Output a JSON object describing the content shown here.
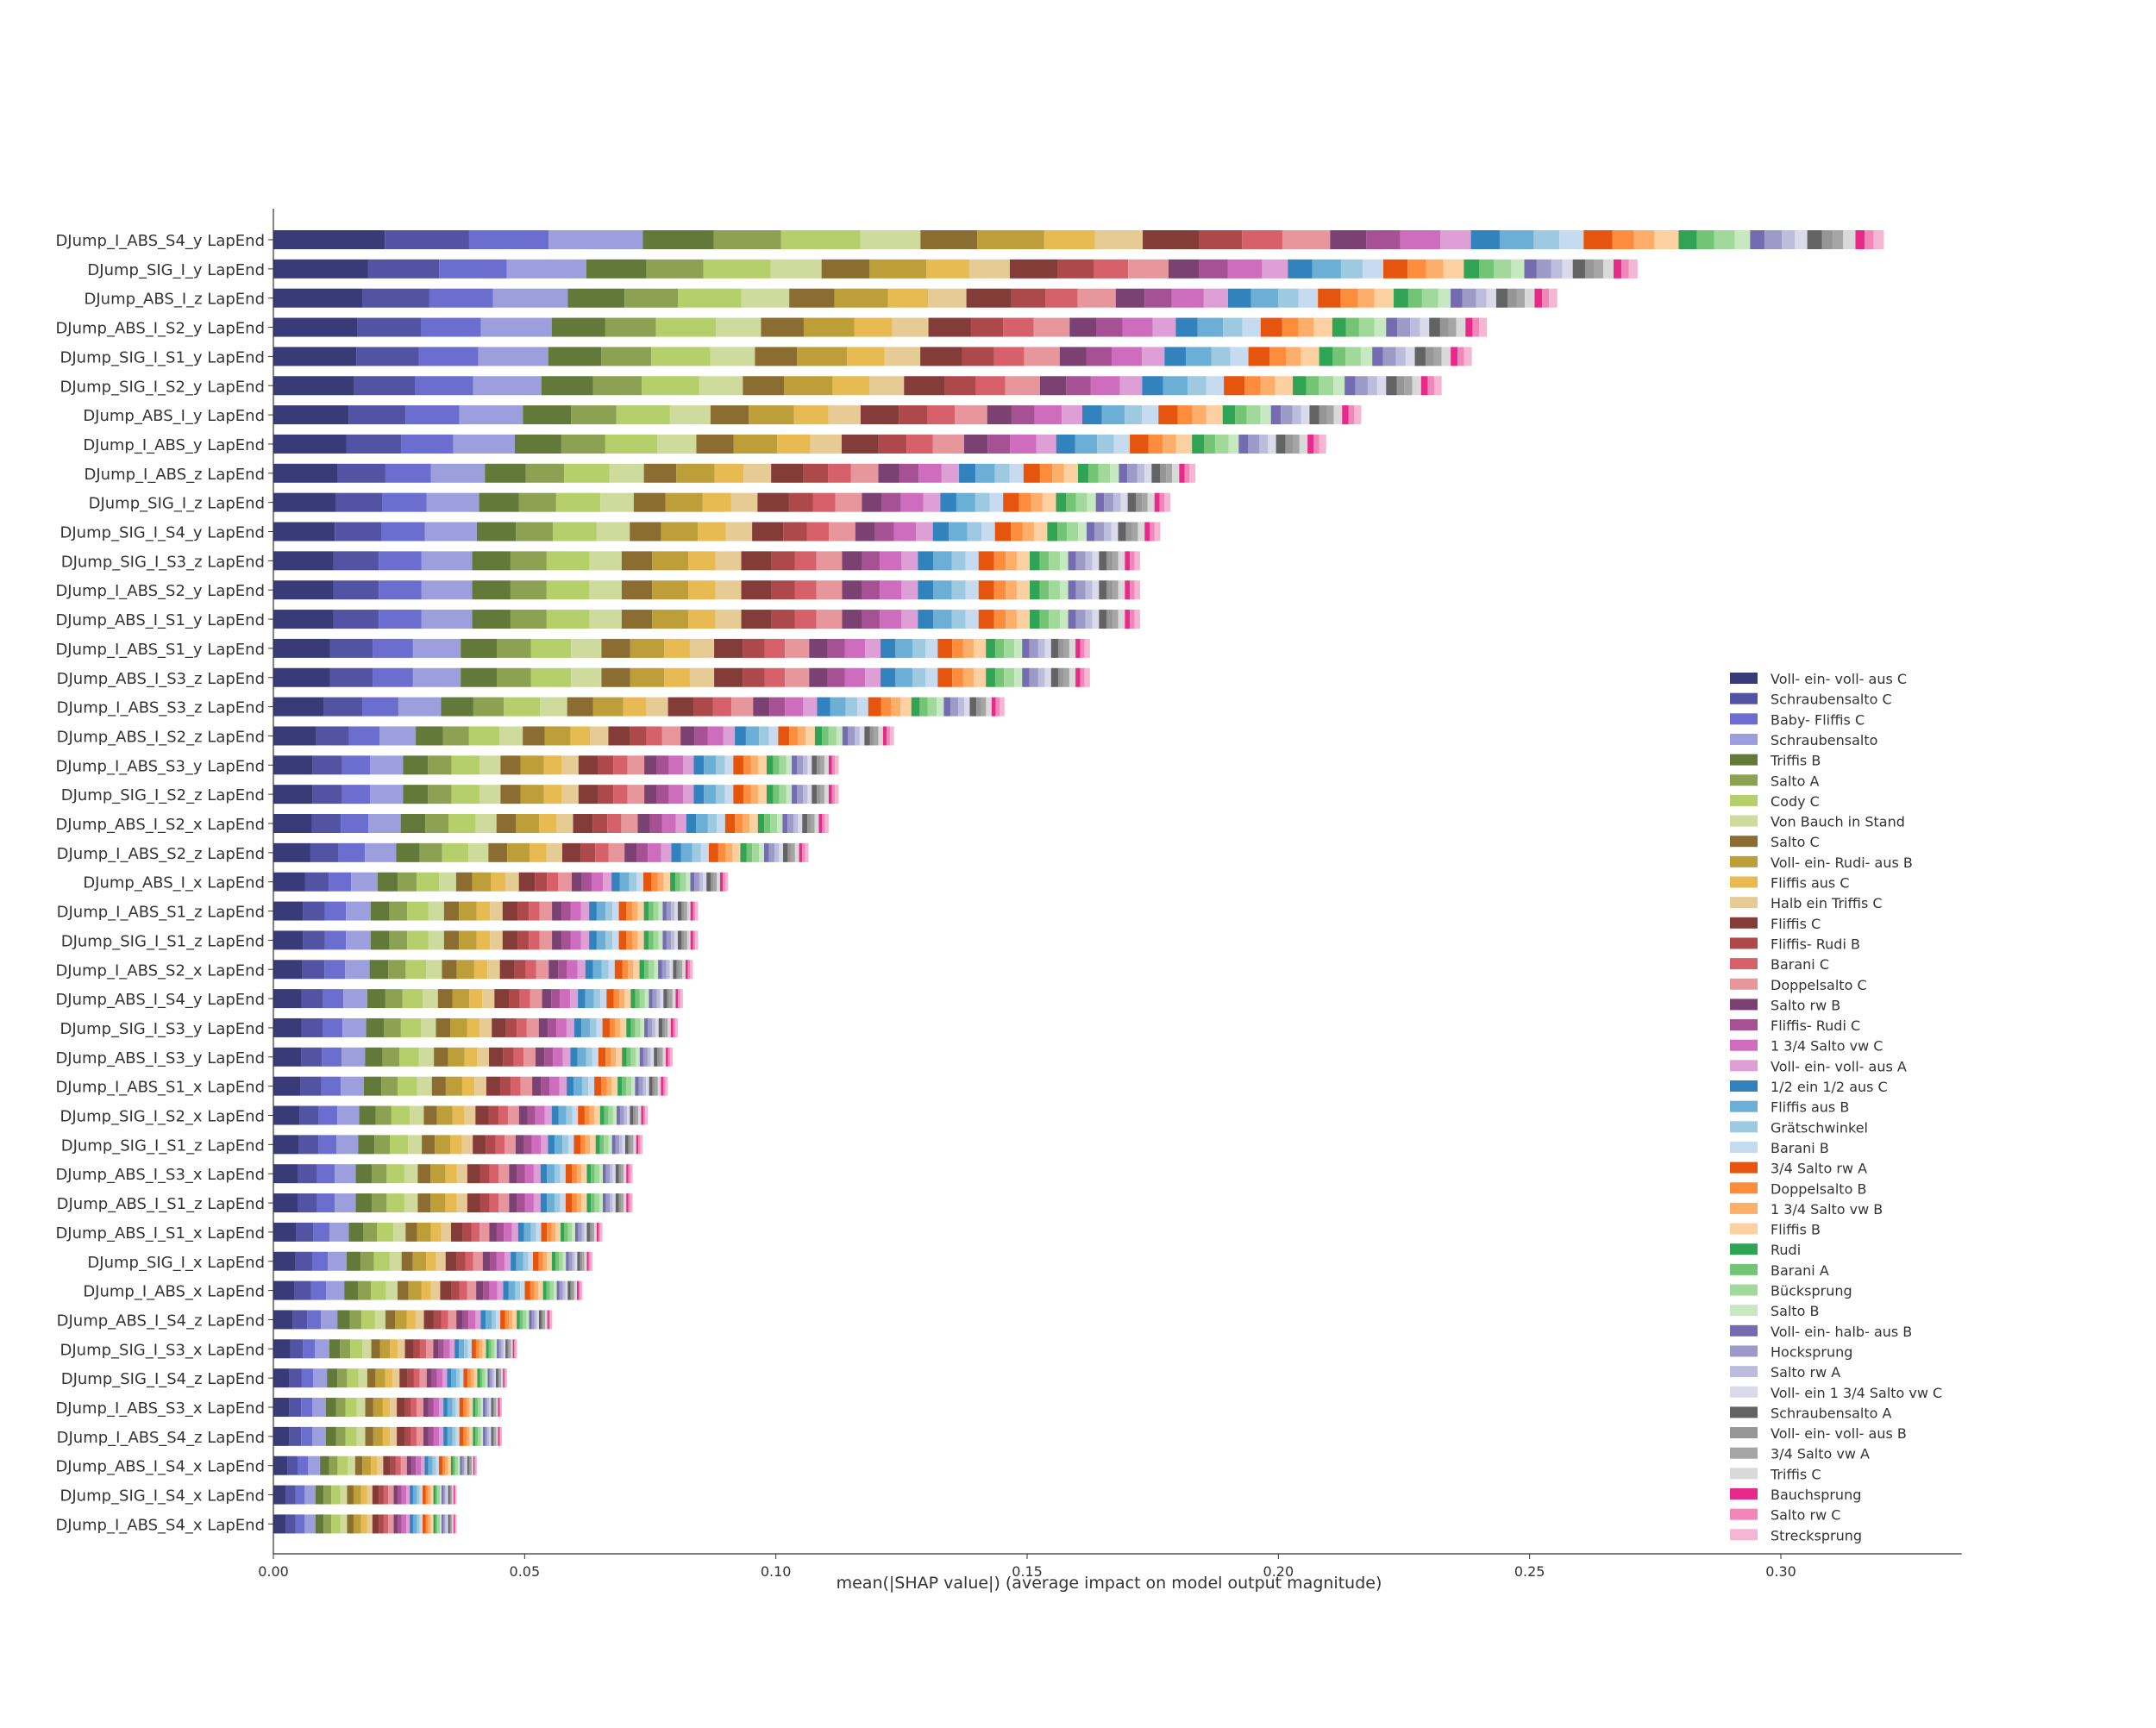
{
  "chart_data": {
    "type": "bar",
    "stacked": true,
    "orientation": "horizontal",
    "title": "",
    "xlabel": "mean(|SHAP value|) (average impact on model output magnitude)",
    "ylabel": "",
    "xlim": [
      0,
      0.336
    ],
    "xticks": [
      0.0,
      0.05,
      0.1,
      0.15,
      0.2,
      0.25,
      0.3
    ],
    "xtick_labels": [
      "0.00",
      "0.05",
      "0.10",
      "0.15",
      "0.20",
      "0.25",
      "0.30"
    ],
    "grid": false,
    "legend_position": "lower-right",
    "categories": [
      "DJump_I_ABS_S4_y LapEnd",
      "DJump_SIG_I_y LapEnd",
      "DJump_ABS_I_z LapEnd",
      "DJump_ABS_I_S2_y LapEnd",
      "DJump_SIG_I_S1_y LapEnd",
      "DJump_SIG_I_S2_y LapEnd",
      "DJump_ABS_I_y LapEnd",
      "DJump_I_ABS_y LapEnd",
      "DJump_I_ABS_z LapEnd",
      "DJump_SIG_I_z LapEnd",
      "DJump_SIG_I_S4_y LapEnd",
      "DJump_SIG_I_S3_z LapEnd",
      "DJump_I_ABS_S2_y LapEnd",
      "DJump_ABS_I_S1_y LapEnd",
      "DJump_I_ABS_S1_y LapEnd",
      "DJump_ABS_I_S3_z LapEnd",
      "DJump_I_ABS_S3_z LapEnd",
      "DJump_ABS_I_S2_z LapEnd",
      "DJump_I_ABS_S3_y LapEnd",
      "DJump_SIG_I_S2_z LapEnd",
      "DJump_ABS_I_S2_x LapEnd",
      "DJump_I_ABS_S2_z LapEnd",
      "DJump_ABS_I_x LapEnd",
      "DJump_I_ABS_S1_z LapEnd",
      "DJump_SIG_I_S1_z LapEnd",
      "DJump_I_ABS_S2_x LapEnd",
      "DJump_ABS_I_S4_y LapEnd",
      "DJump_SIG_I_S3_y LapEnd",
      "DJump_ABS_I_S3_y LapEnd",
      "DJump_I_ABS_S1_x LapEnd",
      "DJump_SIG_I_S2_x LapEnd",
      "DJump_SIG_I_S1_z LapEnd",
      "DJump_ABS_I_S3_x LapEnd",
      "DJump_ABS_I_S1_z LapEnd",
      "DJump_ABS_I_S1_x LapEnd",
      "DJump_SIG_I_x LapEnd",
      "DJump_I_ABS_x LapEnd",
      "DJump_ABS_I_S4_z LapEnd",
      "DJump_SIG_I_S3_x LapEnd",
      "DJump_SIG_I_S4_z LapEnd",
      "DJump_I_ABS_S3_x LapEnd",
      "DJump_I_ABS_S4_z LapEnd",
      "DJump_ABS_I_S4_x LapEnd",
      "DJump_SIG_I_S4_x LapEnd",
      "DJump_I_ABS_S4_x LapEnd"
    ],
    "totals": [
      0.3205,
      0.2715,
      0.2555,
      0.2415,
      0.2385,
      0.2325,
      0.2165,
      0.2095,
      0.1835,
      0.1785,
      0.1765,
      0.1725,
      0.1725,
      0.1725,
      0.1625,
      0.1625,
      0.1455,
      0.1235,
      0.1125,
      0.1125,
      0.1105,
      0.1065,
      0.0905,
      0.0845,
      0.0845,
      0.0835,
      0.0815,
      0.0805,
      0.0795,
      0.0785,
      0.0745,
      0.0735,
      0.0715,
      0.0715,
      0.0655,
      0.0635,
      0.0615,
      0.0555,
      0.0485,
      0.0465,
      0.0455,
      0.0455,
      0.0405,
      0.0365,
      0.0365
    ],
    "series_names": [
      "Voll- ein- voll- aus C",
      "Schraubensalto C",
      "Baby- Fliffis C",
      "Schraubensalto",
      "Triffis B",
      "Salto A",
      "Cody C",
      "Von Bauch in Stand",
      "Salto C",
      "Voll- ein- Rudi- aus B",
      "Fliffis aus C",
      "Halb ein Triffis C",
      "Fliffis C",
      "Fliffis- Rudi B",
      "Barani C",
      "Doppelsalto C",
      "Salto rw B",
      "Fliffis- Rudi C",
      "1 3/4 Salto vw C",
      "Voll- ein- voll- aus A",
      "1/2 ein 1/2 aus C",
      "Fliffis aus B",
      "Grätschwinkel",
      "Barani B",
      "3/4 Salto rw A",
      "Doppelsalto B",
      "1 3/4 Salto vw B",
      "Fliffis B",
      "Rudi",
      "Barani A",
      "Bücksprung",
      "Salto B",
      "Voll- ein- halb- aus B",
      "Hocksprung",
      "Salto rw A",
      "Voll- ein 1 3/4 Salto vw C",
      "Schraubensalto A",
      "Voll- ein- voll- aus B",
      "3/4 Salto vw A",
      "Triffis C",
      "Bauchsprung",
      "Salto rw C",
      "Strecksprung"
    ],
    "series_colors": [
      "#393b79",
      "#5254a3",
      "#6b6ecf",
      "#9c9ede",
      "#637939",
      "#8ca252",
      "#b5cf6b",
      "#cedb9c",
      "#8c6d31",
      "#bd9e39",
      "#e7ba52",
      "#e7cb94",
      "#843c39",
      "#ad494a",
      "#d6616b",
      "#e7969c",
      "#7b4173",
      "#a55194",
      "#ce6dbd",
      "#de9ed6",
      "#3182bd",
      "#6baed6",
      "#9ecae1",
      "#c6dbef",
      "#e6550d",
      "#fd8d3c",
      "#fdae6b",
      "#fdd0a2",
      "#31a354",
      "#74c476",
      "#a1d99b",
      "#c7e9c0",
      "#756bb1",
      "#9e9ac8",
      "#bcbddc",
      "#dadaeb",
      "#636363",
      "#969696",
      "#a5a5a5",
      "#d9d9d9",
      "#e7298a",
      "#f187b8",
      "#f4b6d2"
    ]
  }
}
